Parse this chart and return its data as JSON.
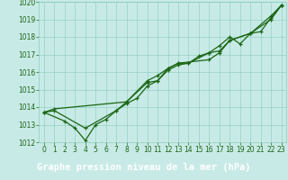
{
  "title": "Graphe pression niveau de la mer (hPa)",
  "x": [
    0,
    1,
    2,
    3,
    4,
    5,
    6,
    7,
    8,
    9,
    10,
    11,
    12,
    13,
    14,
    15,
    16,
    17,
    18,
    19,
    20,
    21,
    22,
    23
  ],
  "series1": [
    1013.7,
    1013.8,
    null,
    null,
    1012.8,
    null,
    null,
    1013.8,
    1014.3,
    null,
    1015.5,
    1015.8,
    1016.2,
    1016.5,
    1016.5,
    null,
    1017.1,
    1017.2,
    1017.8,
    null,
    1018.2,
    null,
    1019.2,
    1019.8
  ],
  "series2": [
    1013.7,
    null,
    1013.2,
    1012.8,
    1012.1,
    1013.0,
    1013.3,
    1013.8,
    1014.2,
    1014.5,
    1015.2,
    1015.5,
    1016.1,
    1016.4,
    1016.5,
    1016.9,
    1017.1,
    1017.5,
    1018.0,
    1017.6,
    1018.2,
    1018.3,
    1019.1,
    1019.8
  ],
  "series3": [
    1013.7,
    1013.9,
    null,
    null,
    null,
    null,
    null,
    null,
    1014.3,
    null,
    1015.4,
    1015.5,
    1016.2,
    1016.5,
    null,
    null,
    1016.7,
    1017.1,
    1017.8,
    null,
    1018.2,
    null,
    1019.0,
    1019.8
  ],
  "ylim": [
    1012.0,
    1020.0
  ],
  "xlim": [
    -0.5,
    23.5
  ],
  "yticks": [
    1012,
    1013,
    1014,
    1015,
    1016,
    1017,
    1018,
    1019,
    1020
  ],
  "xticks": [
    0,
    1,
    2,
    3,
    4,
    5,
    6,
    7,
    8,
    9,
    10,
    11,
    12,
    13,
    14,
    15,
    16,
    17,
    18,
    19,
    20,
    21,
    22,
    23
  ],
  "line_color": "#1a6614",
  "bg_color": "#c8eae6",
  "grid_color": "#88ccbb",
  "title_color": "white",
  "title_bg": "#0a7010",
  "tick_fontsize": 5.5,
  "title_fontsize": 7.5,
  "lw": 0.9,
  "markersize": 3.5,
  "markeredgewidth": 0.9
}
